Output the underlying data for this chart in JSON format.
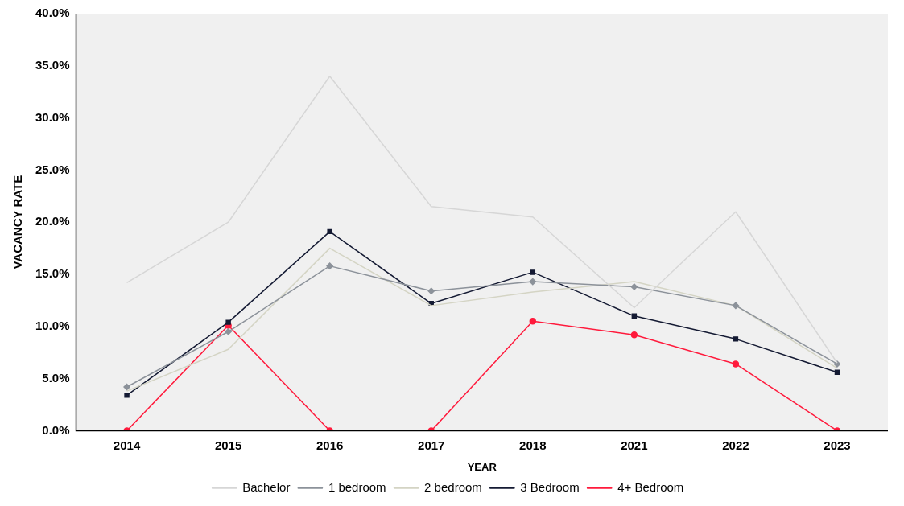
{
  "chart_data": {
    "type": "line",
    "xlabel": "YEAR",
    "ylabel": "VACANCY RATE",
    "categories": [
      "2014",
      "2015",
      "2016",
      "2017",
      "2018",
      "2021",
      "2022",
      "2023"
    ],
    "ylim": [
      0,
      40
    ],
    "yticks": [
      {
        "value": 0,
        "label": "0.0%"
      },
      {
        "value": 5,
        "label": "5.0%"
      },
      {
        "value": 10,
        "label": "10.0%"
      },
      {
        "value": 15,
        "label": "15.0%"
      },
      {
        "value": 20,
        "label": "20.0%"
      },
      {
        "value": 25,
        "label": "25.0%"
      },
      {
        "value": 30,
        "label": "30.0%"
      },
      {
        "value": 35,
        "label": "35.0%"
      },
      {
        "value": 40,
        "label": "40.0%"
      }
    ],
    "grid": false,
    "legend": "bottom",
    "series": [
      {
        "name": "Bachelor",
        "color": "#d6d6d6",
        "marker": "none",
        "values": [
          14.2,
          20,
          34,
          21.5,
          20.5,
          11.8,
          21,
          6.5
        ]
      },
      {
        "name": "1 bedroom",
        "color": "#8c929a",
        "marker": "diamond",
        "values": [
          4.2,
          9.5,
          15.8,
          13.4,
          14.3,
          13.8,
          12.0,
          6.4
        ]
      },
      {
        "name": "2 bedroom",
        "color": "#d4d4c4",
        "marker": "none",
        "values": [
          3.8,
          7.8,
          17.5,
          12.0,
          13.3,
          14.3,
          12.0,
          6.0
        ]
      },
      {
        "name": "3 Bedroom",
        "color": "#141a33",
        "marker": "square",
        "values": [
          3.4,
          10.4,
          19.1,
          12.2,
          15.2,
          11.0,
          8.8,
          5.6
        ]
      },
      {
        "name": "4+ Bedroom",
        "color": "#ff1a3c",
        "marker": "circle",
        "values": [
          0,
          10.1,
          0,
          0,
          10.5,
          9.2,
          6.4,
          0
        ]
      }
    ]
  }
}
